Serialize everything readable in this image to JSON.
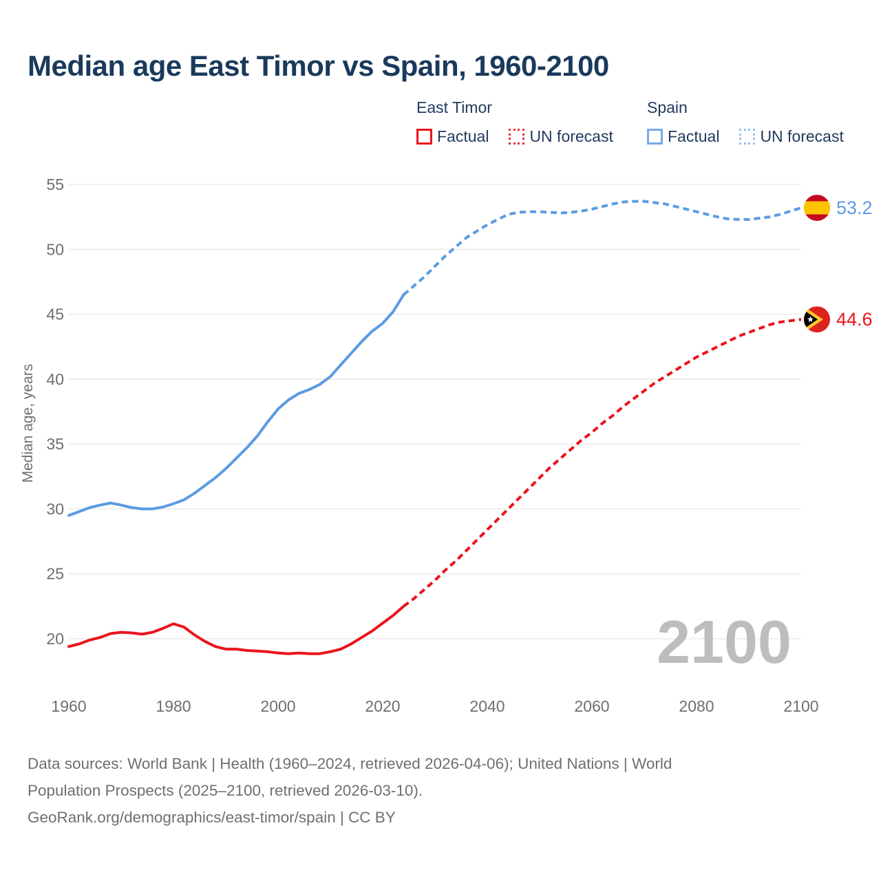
{
  "title": "Median age East Timor vs Spain, 1960-2100",
  "legend": {
    "groups": [
      {
        "name": "East Timor",
        "color": "#e9141d",
        "items": [
          {
            "label": "Factual",
            "style": "solid"
          },
          {
            "label": "UN forecast",
            "style": "dotted"
          }
        ]
      },
      {
        "name": "Spain",
        "color": "#5b9be2",
        "items": [
          {
            "label": "Factual",
            "style": "solid"
          },
          {
            "label": "UN forecast",
            "style": "dotted"
          }
        ]
      }
    ]
  },
  "chart_data": {
    "type": "line",
    "title": "Median age East Timor vs Spain, 1960-2100",
    "xlabel": "",
    "ylabel": "Median age, years",
    "ylim": [
      20,
      55
    ],
    "xlim": [
      1960,
      2100
    ],
    "y_ticks": [
      20,
      25,
      30,
      35,
      40,
      45,
      50,
      55
    ],
    "x_ticks": [
      1960,
      1980,
      2000,
      2020,
      2040,
      2060,
      2080,
      2100
    ],
    "grid": "horizontal",
    "legend_position": "top-right",
    "watermark": "2100",
    "colors": {
      "east_timor": "#e9141d",
      "spain": "#5b9be2",
      "grid": "#ebebeb",
      "axis_text": "#6e6e6e",
      "watermark": "#bdbdbd"
    },
    "series": [
      {
        "name": "Spain Factual",
        "color": "#5b9be2",
        "style": "solid",
        "points": [
          [
            1960,
            29.5
          ],
          [
            1962,
            29.8
          ],
          [
            1964,
            30.1
          ],
          [
            1966,
            30.3
          ],
          [
            1968,
            30.45
          ],
          [
            1970,
            30.3
          ],
          [
            1972,
            30.1
          ],
          [
            1974,
            30.0
          ],
          [
            1976,
            30.0
          ],
          [
            1978,
            30.15
          ],
          [
            1980,
            30.4
          ],
          [
            1982,
            30.7
          ],
          [
            1984,
            31.2
          ],
          [
            1986,
            31.8
          ],
          [
            1988,
            32.4
          ],
          [
            1990,
            33.1
          ],
          [
            1992,
            33.9
          ],
          [
            1994,
            34.7
          ],
          [
            1996,
            35.6
          ],
          [
            1998,
            36.7
          ],
          [
            2000,
            37.7
          ],
          [
            2002,
            38.4
          ],
          [
            2004,
            38.9
          ],
          [
            2006,
            39.2
          ],
          [
            2008,
            39.6
          ],
          [
            2010,
            40.2
          ],
          [
            2012,
            41.1
          ],
          [
            2014,
            42.0
          ],
          [
            2016,
            42.9
          ],
          [
            2018,
            43.7
          ],
          [
            2020,
            44.3
          ],
          [
            2022,
            45.2
          ],
          [
            2024,
            46.5
          ]
        ]
      },
      {
        "name": "Spain UN forecast",
        "color": "#5b9be2",
        "style": "dashed",
        "points": [
          [
            2024,
            46.5
          ],
          [
            2026,
            47.2
          ],
          [
            2028,
            47.9
          ],
          [
            2030,
            48.7
          ],
          [
            2032,
            49.5
          ],
          [
            2034,
            50.2
          ],
          [
            2036,
            50.9
          ],
          [
            2038,
            51.4
          ],
          [
            2040,
            51.9
          ],
          [
            2042,
            52.3
          ],
          [
            2044,
            52.7
          ],
          [
            2046,
            52.85
          ],
          [
            2048,
            52.9
          ],
          [
            2050,
            52.9
          ],
          [
            2052,
            52.85
          ],
          [
            2054,
            52.8
          ],
          [
            2056,
            52.85
          ],
          [
            2058,
            52.95
          ],
          [
            2060,
            53.1
          ],
          [
            2062,
            53.3
          ],
          [
            2064,
            53.5
          ],
          [
            2066,
            53.65
          ],
          [
            2068,
            53.7
          ],
          [
            2070,
            53.7
          ],
          [
            2072,
            53.6
          ],
          [
            2074,
            53.5
          ],
          [
            2076,
            53.3
          ],
          [
            2078,
            53.1
          ],
          [
            2080,
            52.9
          ],
          [
            2082,
            52.7
          ],
          [
            2084,
            52.5
          ],
          [
            2086,
            52.35
          ],
          [
            2088,
            52.3
          ],
          [
            2090,
            52.3
          ],
          [
            2092,
            52.4
          ],
          [
            2094,
            52.5
          ],
          [
            2096,
            52.7
          ],
          [
            2098,
            52.95
          ],
          [
            2100,
            53.2
          ]
        ]
      },
      {
        "name": "East Timor Factual",
        "color": "#e9141d",
        "style": "solid",
        "points": [
          [
            1960,
            19.4
          ],
          [
            1962,
            19.6
          ],
          [
            1964,
            19.9
          ],
          [
            1966,
            20.1
          ],
          [
            1968,
            20.4
          ],
          [
            1970,
            20.5
          ],
          [
            1972,
            20.45
          ],
          [
            1974,
            20.35
          ],
          [
            1976,
            20.5
          ],
          [
            1978,
            20.8
          ],
          [
            1980,
            21.15
          ],
          [
            1982,
            20.9
          ],
          [
            1984,
            20.3
          ],
          [
            1986,
            19.8
          ],
          [
            1988,
            19.4
          ],
          [
            1990,
            19.2
          ],
          [
            1992,
            19.2
          ],
          [
            1994,
            19.1
          ],
          [
            1996,
            19.05
          ],
          [
            1998,
            19.0
          ],
          [
            2000,
            18.9
          ],
          [
            2002,
            18.85
          ],
          [
            2004,
            18.9
          ],
          [
            2006,
            18.85
          ],
          [
            2008,
            18.85
          ],
          [
            2010,
            19.0
          ],
          [
            2012,
            19.2
          ],
          [
            2014,
            19.6
          ],
          [
            2016,
            20.1
          ],
          [
            2018,
            20.6
          ],
          [
            2020,
            21.2
          ],
          [
            2022,
            21.8
          ],
          [
            2024,
            22.5
          ]
        ]
      },
      {
        "name": "East Timor UN forecast",
        "color": "#e9141d",
        "style": "dashed",
        "points": [
          [
            2024,
            22.5
          ],
          [
            2026,
            23.1
          ],
          [
            2028,
            23.8
          ],
          [
            2030,
            24.5
          ],
          [
            2032,
            25.3
          ],
          [
            2034,
            26.0
          ],
          [
            2036,
            26.8
          ],
          [
            2038,
            27.6
          ],
          [
            2040,
            28.4
          ],
          [
            2042,
            29.2
          ],
          [
            2044,
            30.0
          ],
          [
            2046,
            30.8
          ],
          [
            2048,
            31.6
          ],
          [
            2050,
            32.4
          ],
          [
            2052,
            33.2
          ],
          [
            2054,
            33.9
          ],
          [
            2056,
            34.6
          ],
          [
            2058,
            35.3
          ],
          [
            2060,
            35.9
          ],
          [
            2062,
            36.6
          ],
          [
            2064,
            37.2
          ],
          [
            2066,
            37.9
          ],
          [
            2068,
            38.5
          ],
          [
            2070,
            39.1
          ],
          [
            2072,
            39.7
          ],
          [
            2074,
            40.2
          ],
          [
            2076,
            40.7
          ],
          [
            2078,
            41.2
          ],
          [
            2080,
            41.7
          ],
          [
            2082,
            42.1
          ],
          [
            2084,
            42.5
          ],
          [
            2086,
            42.9
          ],
          [
            2088,
            43.3
          ],
          [
            2090,
            43.6
          ],
          [
            2092,
            43.9
          ],
          [
            2094,
            44.2
          ],
          [
            2096,
            44.4
          ],
          [
            2098,
            44.5
          ],
          [
            2100,
            44.6
          ]
        ]
      }
    ],
    "end_labels": [
      {
        "series": "Spain",
        "value": "53.2",
        "year": 2100,
        "y": 53.2,
        "flag": "spain",
        "color": "#5b9be2"
      },
      {
        "series": "East Timor",
        "value": "44.6",
        "year": 2100,
        "y": 44.6,
        "flag": "east-timor",
        "color": "#e9141d"
      }
    ]
  },
  "footer": {
    "lines": [
      "Data sources: World Bank | Health (1960–2024, retrieved 2026-04-06); United Nations | World",
      "Population Prospects (2025–2100, retrieved 2026-03-10).",
      "GeoRank.org/demographics/east-timor/spain | CC BY"
    ]
  }
}
